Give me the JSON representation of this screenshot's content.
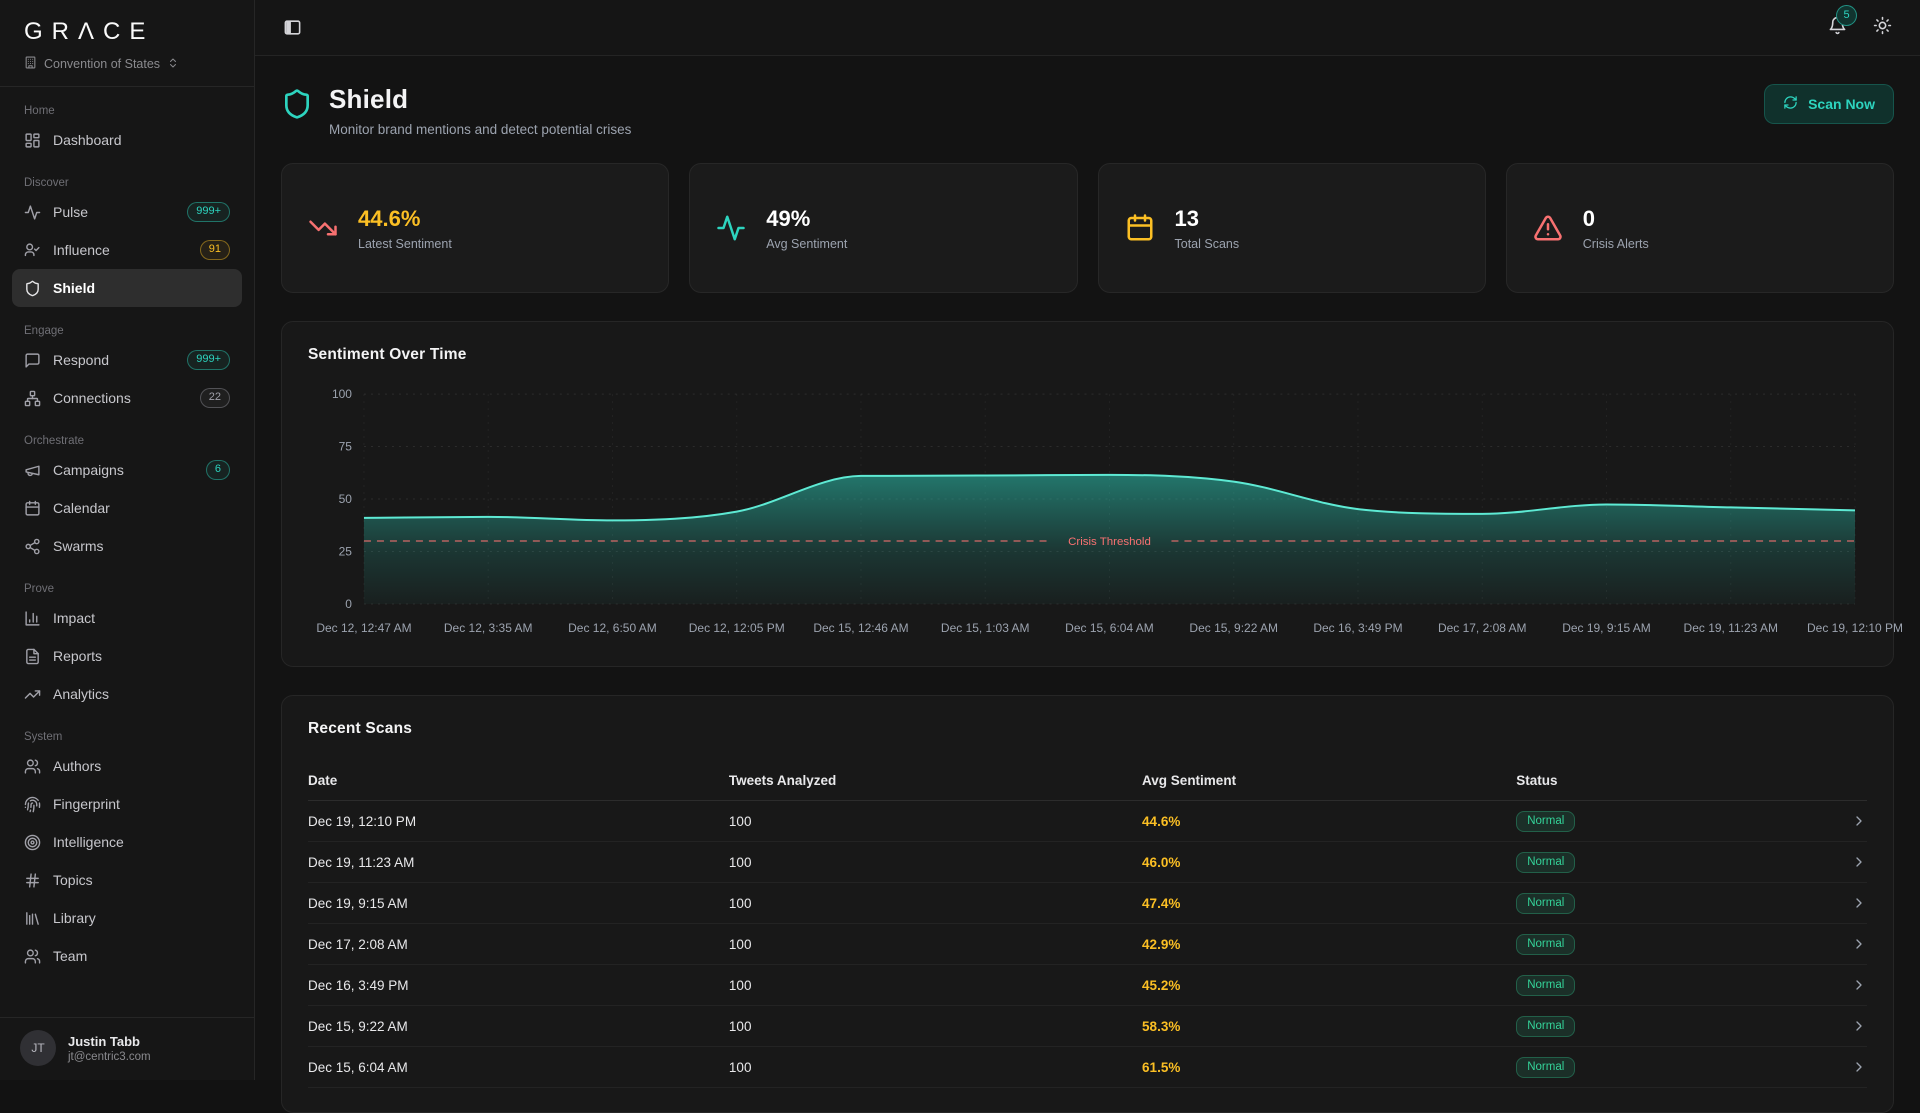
{
  "brand": {
    "logo": "GRΛCE",
    "workspace": "Convention of States"
  },
  "topbar": {
    "notification_count": "5"
  },
  "sidebar": {
    "sections": [
      {
        "label": "Home",
        "items": [
          {
            "label": "Dashboard",
            "icon": "dashboard-icon"
          }
        ]
      },
      {
        "label": "Discover",
        "items": [
          {
            "label": "Pulse",
            "icon": "pulse-icon",
            "badge": "999+",
            "badge_color": "teal"
          },
          {
            "label": "Influence",
            "icon": "influence-icon",
            "badge": "91",
            "badge_color": "amber"
          },
          {
            "label": "Shield",
            "icon": "shield-icon",
            "active": true
          }
        ]
      },
      {
        "label": "Engage",
        "items": [
          {
            "label": "Respond",
            "icon": "message-icon",
            "badge": "999+",
            "badge_color": "teal"
          },
          {
            "label": "Connections",
            "icon": "network-icon",
            "badge": "22",
            "badge_color": "gray"
          }
        ]
      },
      {
        "label": "Orchestrate",
        "items": [
          {
            "label": "Campaigns",
            "icon": "megaphone-icon",
            "badge": "6",
            "badge_color": "teal"
          },
          {
            "label": "Calendar",
            "icon": "calendar-icon"
          },
          {
            "label": "Swarms",
            "icon": "share-icon"
          }
        ]
      },
      {
        "label": "Prove",
        "items": [
          {
            "label": "Impact",
            "icon": "bar-chart-icon"
          },
          {
            "label": "Reports",
            "icon": "file-text-icon"
          },
          {
            "label": "Analytics",
            "icon": "trending-up-icon"
          }
        ]
      },
      {
        "label": "System",
        "items": [
          {
            "label": "Authors",
            "icon": "users-icon"
          },
          {
            "label": "Fingerprint",
            "icon": "fingerprint-icon"
          },
          {
            "label": "Intelligence",
            "icon": "target-icon"
          },
          {
            "label": "Topics",
            "icon": "hash-icon"
          },
          {
            "label": "Library",
            "icon": "library-icon"
          },
          {
            "label": "Team",
            "icon": "users-icon"
          }
        ]
      }
    ],
    "user": {
      "initials": "JT",
      "name": "Justin Tabb",
      "email": "jt@centric3.com"
    }
  },
  "page": {
    "title": "Shield",
    "subtitle": "Monitor brand mentions and detect potential crises",
    "scan_button": "Scan Now"
  },
  "stats": [
    {
      "value": "44.6%",
      "label": "Latest Sentiment",
      "icon": "trending-down-icon",
      "icon_color": "#f87171",
      "value_color": "#fbbf24"
    },
    {
      "value": "49%",
      "label": "Avg Sentiment",
      "icon": "activity-icon",
      "icon_color": "#2dd4bf",
      "value_color": "#ffffff"
    },
    {
      "value": "13",
      "label": "Total Scans",
      "icon": "calendar-icon",
      "icon_color": "#fbbf24",
      "value_color": "#ffffff"
    },
    {
      "value": "0",
      "label": "Crisis Alerts",
      "icon": "alert-triangle-icon",
      "icon_color": "#f87171",
      "value_color": "#ffffff"
    }
  ],
  "chart_data": {
    "type": "area",
    "title": "Sentiment Over Time",
    "x": [
      "Dec 12, 12:47 AM",
      "Dec 12, 3:35 AM",
      "Dec 12, 6:50 AM",
      "Dec 12, 12:05 PM",
      "Dec 15, 12:46 AM",
      "Dec 15, 1:03 AM",
      "Dec 15, 6:04 AM",
      "Dec 15, 9:22 AM",
      "Dec 16, 3:49 PM",
      "Dec 17, 2:08 AM",
      "Dec 19, 9:15 AM",
      "Dec 19, 11:23 AM",
      "Dec 19, 12:10 PM"
    ],
    "values": [
      41,
      41.5,
      39.8,
      44,
      61,
      61.2,
      61.5,
      58.3,
      45.2,
      42.9,
      47.4,
      46.0,
      44.6
    ],
    "ylim": [
      0,
      100
    ],
    "yticks": [
      0,
      25,
      50,
      75,
      100
    ],
    "grid": true,
    "legend": "none",
    "threshold": {
      "label": "Crisis Threshold",
      "value": 30,
      "color": "#f87171"
    },
    "line_color": "#5eead4",
    "fill_color": "#2dd4bf"
  },
  "table": {
    "title": "Recent Scans",
    "columns": [
      "Date",
      "Tweets Analyzed",
      "Avg Sentiment",
      "Status"
    ],
    "rows": [
      {
        "date": "Dec 19, 12:10 PM",
        "tweets": "100",
        "sentiment": "44.6%",
        "status": "Normal"
      },
      {
        "date": "Dec 19, 11:23 AM",
        "tweets": "100",
        "sentiment": "46.0%",
        "status": "Normal"
      },
      {
        "date": "Dec 19, 9:15 AM",
        "tweets": "100",
        "sentiment": "47.4%",
        "status": "Normal"
      },
      {
        "date": "Dec 17, 2:08 AM",
        "tweets": "100",
        "sentiment": "42.9%",
        "status": "Normal"
      },
      {
        "date": "Dec 16, 3:49 PM",
        "tweets": "100",
        "sentiment": "45.2%",
        "status": "Normal"
      },
      {
        "date": "Dec 15, 9:22 AM",
        "tweets": "100",
        "sentiment": "58.3%",
        "status": "Normal"
      },
      {
        "date": "Dec 15, 6:04 AM",
        "tweets": "100",
        "sentiment": "61.5%",
        "status": "Normal"
      }
    ]
  },
  "colors": {
    "accent_teal": "#2dd4bf",
    "amber": "#fbbf24",
    "red": "#f87171",
    "green": "#34d399",
    "sentiment_text": "#fbbf24"
  }
}
